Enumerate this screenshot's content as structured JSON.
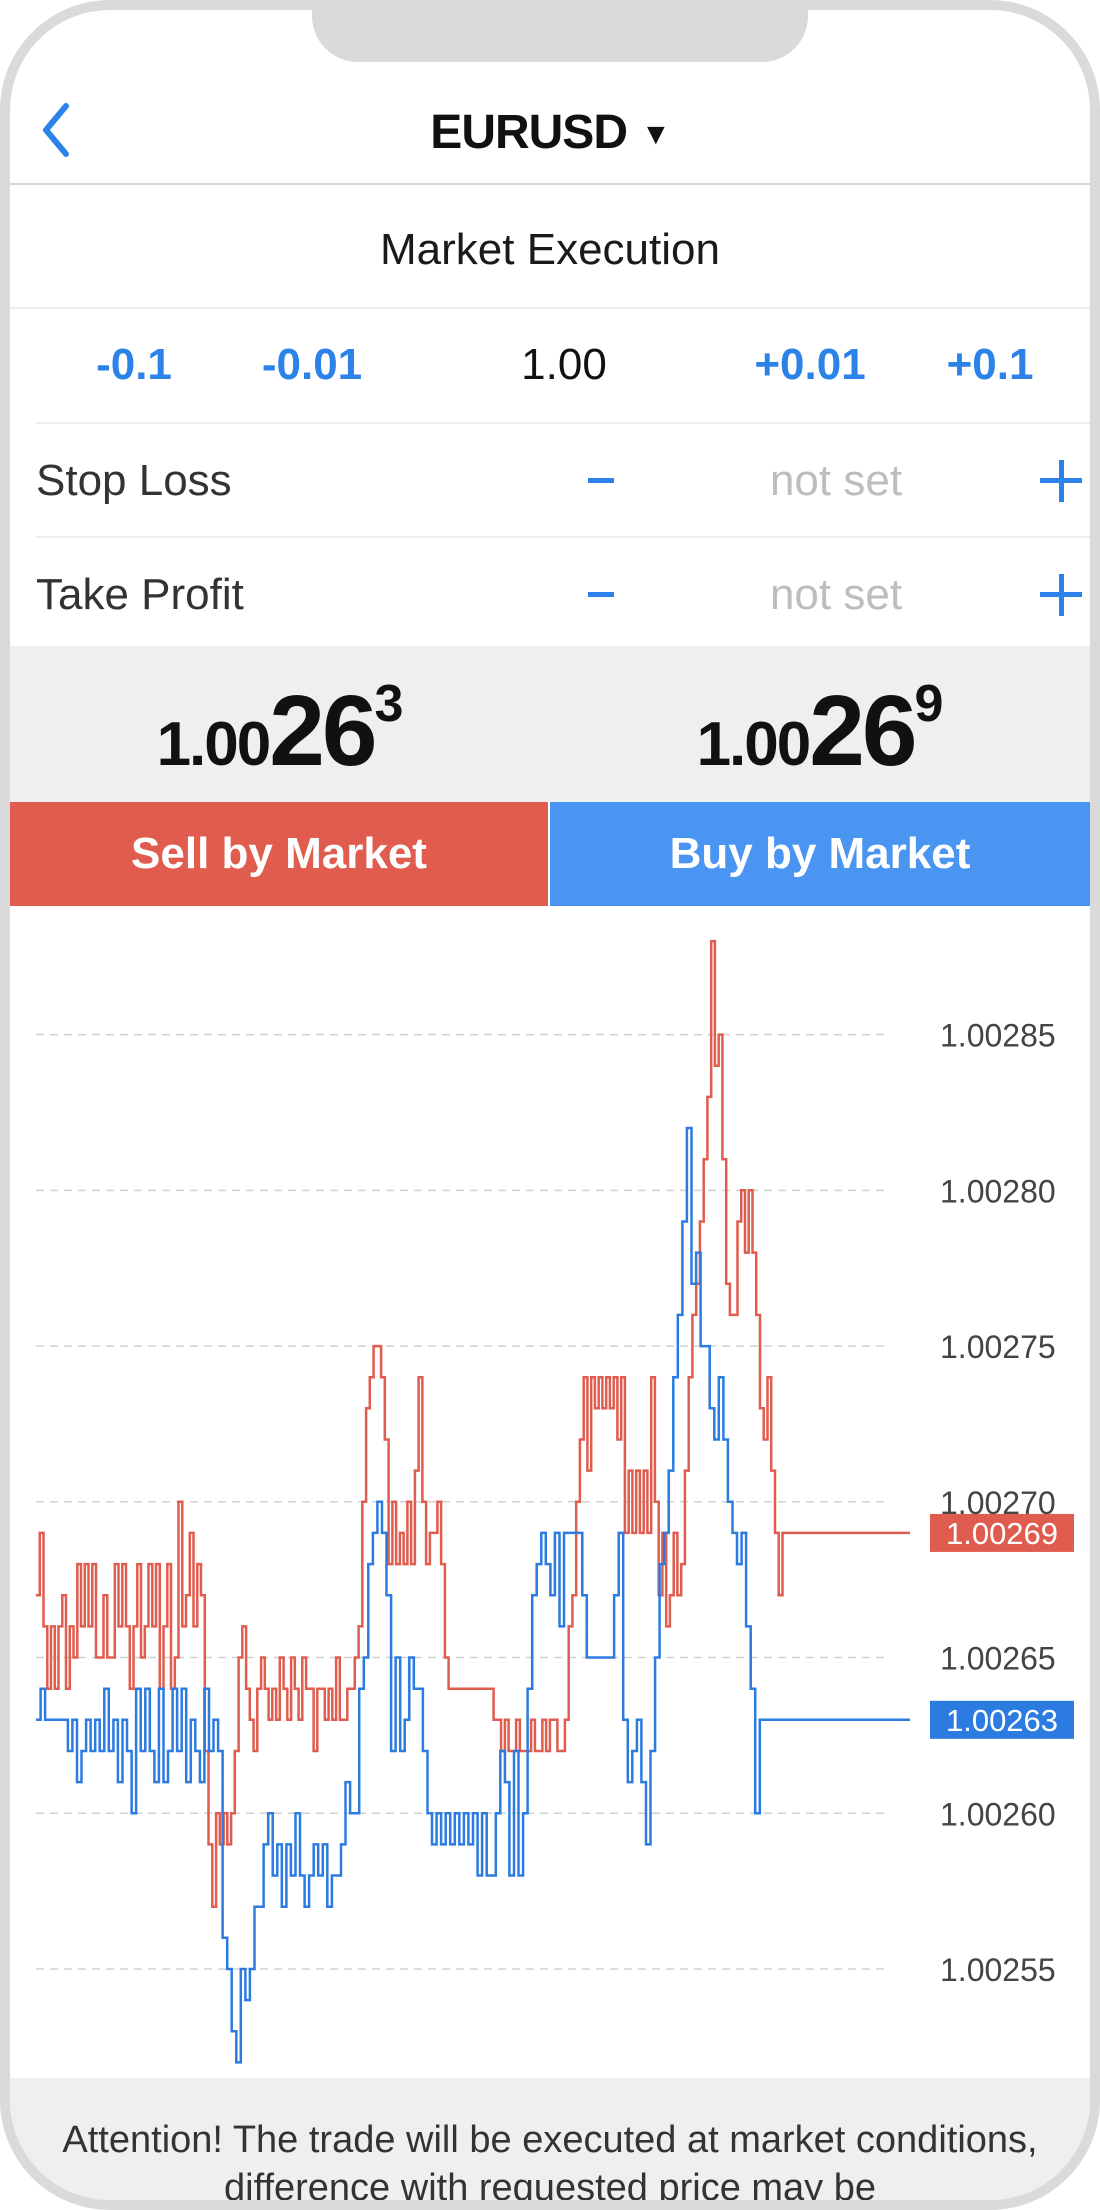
{
  "header": {
    "symbol": "EURUSD",
    "symbol_arrow": "▼",
    "back_icon": "chevron-left-icon"
  },
  "order": {
    "execution_type": "Market Execution",
    "volume": {
      "minus_large": "-0.1",
      "minus_small": "-0.01",
      "value": "1.00",
      "plus_small": "+0.01",
      "plus_large": "+0.1"
    },
    "stop_loss": {
      "label": "Stop Loss",
      "value": "not set"
    },
    "take_profit": {
      "label": "Take Profit",
      "value": "not set"
    }
  },
  "prices": {
    "bid": {
      "small": "1.00",
      "big": "26",
      "sup": "3"
    },
    "ask": {
      "small": "1.00",
      "big": "26",
      "sup": "9"
    }
  },
  "actions": {
    "sell_label": "Sell by Market",
    "buy_label": "Buy by Market"
  },
  "colors": {
    "accent": "#2b83e9",
    "sell": "#e05c4f",
    "buy": "#4a94f2",
    "ask_line": "#e05c4f",
    "bid_line": "#2b7be0"
  },
  "chart_data": {
    "type": "line",
    "grid": true,
    "ylim": [
      1.002515,
      1.00289
    ],
    "y_ticks": [
      "1.00285",
      "1.00280",
      "1.00275",
      "1.00270",
      "1.00265",
      "1.00260",
      "1.00255"
    ],
    "y_tick_values": [
      1.00285,
      1.0028,
      1.00275,
      1.0027,
      1.00265,
      1.0026,
      1.00255
    ],
    "current_labels": [
      {
        "series": "ask",
        "value": "1.00269"
      },
      {
        "series": "bid",
        "value": "1.00263"
      }
    ],
    "series": [
      {
        "key": "ask",
        "values": [
          1.00267,
          1.00269,
          1.00266,
          1.00264,
          1.00266,
          1.00264,
          1.00266,
          1.00267,
          1.00264,
          1.00266,
          1.00265,
          1.00268,
          1.00266,
          1.00268,
          1.00266,
          1.00268,
          1.00265,
          1.00265,
          1.00267,
          1.00265,
          1.00265,
          1.00268,
          1.00266,
          1.00268,
          1.00266,
          1.00264,
          1.00266,
          1.00268,
          1.00265,
          1.00266,
          1.00268,
          1.00266,
          1.00268,
          1.00264,
          1.00266,
          1.00268,
          1.00264,
          1.00265,
          1.0027,
          1.00266,
          1.00267,
          1.00269,
          1.00266,
          1.00268,
          1.00267,
          1.00262,
          1.00259,
          1.00257,
          1.0026,
          1.00259,
          1.0026,
          1.00259,
          1.0026,
          1.00262,
          1.00265,
          1.00266,
          1.00264,
          1.00263,
          1.00262,
          1.00264,
          1.00265,
          1.00264,
          1.00263,
          1.00264,
          1.00263,
          1.00265,
          1.00264,
          1.00263,
          1.00265,
          1.00264,
          1.00263,
          1.00265,
          1.00264,
          1.00264,
          1.00262,
          1.00264,
          1.00264,
          1.00263,
          1.00264,
          1.00263,
          1.00265,
          1.00263,
          1.00263,
          1.00264,
          1.00264,
          1.00265,
          1.00266,
          1.0027,
          1.00273,
          1.00274,
          1.00275,
          1.00275,
          1.00274,
          1.00272,
          1.00268,
          1.0027,
          1.00268,
          1.00269,
          1.00268,
          1.0027,
          1.00268,
          1.00271,
          1.00274,
          1.0027,
          1.00268,
          1.00269,
          1.00269,
          1.0027,
          1.00268,
          1.00265,
          1.00264,
          1.00264,
          1.00264,
          1.00264,
          1.00264,
          1.00264,
          1.00264,
          1.00264,
          1.00264,
          1.00264,
          1.00264,
          1.00264,
          1.00263,
          1.00263,
          1.00262,
          1.00263,
          1.00262,
          1.00262,
          1.00263,
          1.00262,
          1.00262,
          1.00262,
          1.00263,
          1.00262,
          1.00262,
          1.00263,
          1.00262,
          1.00263,
          1.00263,
          1.00262,
          1.00262,
          1.00263,
          1.00266,
          1.00267,
          1.0027,
          1.00272,
          1.00274,
          1.00271,
          1.00274,
          1.00273,
          1.00274,
          1.00273,
          1.00274,
          1.00273,
          1.00274,
          1.00272,
          1.00274,
          1.00269,
          1.00271,
          1.00269,
          1.00271,
          1.00269,
          1.00271,
          1.00269,
          1.00274,
          1.0027,
          1.00267,
          1.00269,
          1.00266,
          1.00267,
          1.00269,
          1.00267,
          1.00268,
          1.00271,
          1.00274,
          1.00276,
          1.00277,
          1.00279,
          1.00281,
          1.00283,
          1.00288,
          1.00284,
          1.00285,
          1.00281,
          1.00277,
          1.00276,
          1.00276,
          1.00279,
          1.0028,
          1.00278,
          1.0028,
          1.00278,
          1.00276,
          1.00273,
          1.00272,
          1.00274,
          1.00271,
          1.00269,
          1.00267,
          1.00269,
          1.00269,
          1.00269,
          1.00269,
          1.00269,
          1.00269,
          1.00269,
          1.00269,
          1.00269,
          1.00269,
          1.00269,
          1.00269,
          1.00269,
          1.00269,
          1.00269,
          1.00269,
          1.00269,
          1.00269,
          1.00269,
          1.00269,
          1.00269,
          1.00269,
          1.00269,
          1.00269,
          1.00269,
          1.00269,
          1.00269,
          1.00269,
          1.00269,
          1.00269,
          1.00269,
          1.00269,
          1.00269,
          1.00269,
          1.00269
        ]
      },
      {
        "key": "bid",
        "values": [
          1.00263,
          1.00264,
          1.00263,
          1.00263,
          1.00263,
          1.00263,
          1.00263,
          1.00262,
          1.00263,
          1.00261,
          1.00262,
          1.00263,
          1.00262,
          1.00263,
          1.00262,
          1.00264,
          1.00262,
          1.00263,
          1.00261,
          1.00263,
          1.00262,
          1.0026,
          1.00264,
          1.00262,
          1.00264,
          1.00262,
          1.00261,
          1.00264,
          1.00261,
          1.00262,
          1.00264,
          1.00262,
          1.00264,
          1.00261,
          1.00263,
          1.00262,
          1.00261,
          1.00264,
          1.00262,
          1.00263,
          1.00262,
          1.00256,
          1.00255,
          1.00253,
          1.00252,
          1.00255,
          1.00254,
          1.00255,
          1.00257,
          1.00257,
          1.00259,
          1.0026,
          1.00258,
          1.00259,
          1.00257,
          1.00259,
          1.00258,
          1.0026,
          1.00258,
          1.00257,
          1.00258,
          1.00259,
          1.00258,
          1.00259,
          1.00257,
          1.00258,
          1.00258,
          1.00259,
          1.00261,
          1.0026,
          1.0026,
          1.00264,
          1.00265,
          1.00268,
          1.00269,
          1.0027,
          1.00269,
          1.00267,
          1.00262,
          1.00265,
          1.00262,
          1.00263,
          1.00265,
          1.00264,
          1.00264,
          1.00262,
          1.0026,
          1.00259,
          1.0026,
          1.00259,
          1.0026,
          1.00259,
          1.0026,
          1.00259,
          1.0026,
          1.00259,
          1.0026,
          1.00258,
          1.0026,
          1.00258,
          1.00258,
          1.0026,
          1.00262,
          1.00261,
          1.00258,
          1.00262,
          1.00258,
          1.0026,
          1.00264,
          1.00267,
          1.00268,
          1.00269,
          1.00268,
          1.00267,
          1.00269,
          1.00266,
          1.00269,
          1.00269,
          1.00269,
          1.00269,
          1.00267,
          1.00265,
          1.00265,
          1.00265,
          1.00265,
          1.00265,
          1.00265,
          1.00267,
          1.00269,
          1.00263,
          1.00261,
          1.00262,
          1.00263,
          1.00261,
          1.00259,
          1.00262,
          1.00265,
          1.00268,
          1.00269,
          1.00271,
          1.00274,
          1.00276,
          1.00279,
          1.00282,
          1.00277,
          1.00278,
          1.00275,
          1.00275,
          1.00273,
          1.00272,
          1.00274,
          1.00272,
          1.0027,
          1.00269,
          1.00268,
          1.00269,
          1.00266,
          1.00264,
          1.0026,
          1.00263,
          1.00263,
          1.00263,
          1.00263,
          1.00263,
          1.00263,
          1.00263,
          1.00263,
          1.00263,
          1.00263,
          1.00263,
          1.00263,
          1.00263,
          1.00263,
          1.00263,
          1.00263,
          1.00263,
          1.00263,
          1.00263,
          1.00263,
          1.00263,
          1.00263,
          1.00263,
          1.00263,
          1.00263,
          1.00263,
          1.00263,
          1.00263,
          1.00263,
          1.00263,
          1.00263,
          1.00263,
          1.00263,
          1.00263
        ]
      }
    ]
  },
  "notice": {
    "text": "Attention! The trade will be executed at market conditions, difference with requested price may be"
  }
}
